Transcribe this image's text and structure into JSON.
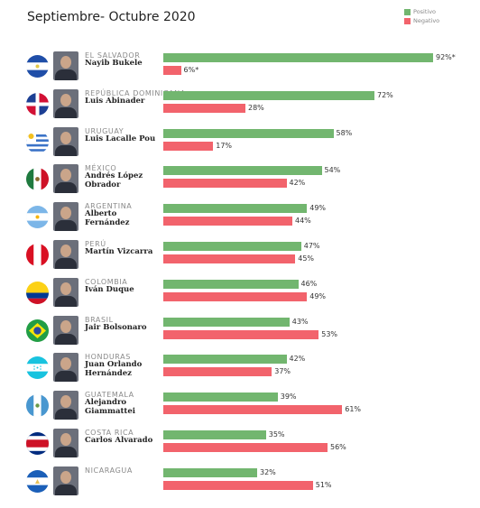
{
  "title": "Septiembre- Octubre 2020",
  "legend": {
    "positive": "Positivo",
    "negative": "Negativo"
  },
  "colors": {
    "positive": "#72b66f",
    "negative": "#f2636c"
  },
  "chart_data": {
    "type": "bar",
    "orientation": "horizontal",
    "title": "Septiembre- Octubre 2020",
    "xlim": [
      0,
      100
    ],
    "legend_position": "top-right",
    "series": [
      {
        "name": "Positivo",
        "values": [
          92,
          72,
          58,
          54,
          49,
          47,
          46,
          43,
          42,
          39,
          35,
          32
        ]
      },
      {
        "name": "Negativo",
        "values": [
          6,
          28,
          17,
          42,
          44,
          45,
          49,
          53,
          37,
          61,
          56,
          51
        ]
      }
    ],
    "rows": [
      {
        "country": "EL SALVADOR",
        "leader": "Nayib Bukele",
        "positive": 92,
        "negative": 6,
        "pos_label": "92%*",
        "neg_label": "6%*",
        "flag": "el-salvador-flag"
      },
      {
        "country": "REPÚBLICA DOMINICANA",
        "leader": "Luis Abinader",
        "positive": 72,
        "negative": 28,
        "pos_label": "72%",
        "neg_label": "28%",
        "flag": "dominican-republic-flag"
      },
      {
        "country": "URUGUAY",
        "leader": "Luis Lacalle Pou",
        "positive": 58,
        "negative": 17,
        "pos_label": "58%",
        "neg_label": "17%",
        "flag": "uruguay-flag"
      },
      {
        "country": "MÉXICO",
        "leader": "Andrés López Obrador",
        "positive": 54,
        "negative": 42,
        "pos_label": "54%",
        "neg_label": "42%",
        "flag": "mexico-flag"
      },
      {
        "country": "ARGENTINA",
        "leader": "Alberto Fernández",
        "positive": 49,
        "negative": 44,
        "pos_label": "49%",
        "neg_label": "44%",
        "flag": "argentina-flag"
      },
      {
        "country": "PERÚ",
        "leader": "Martín Vizcarra",
        "positive": 47,
        "negative": 45,
        "pos_label": "47%",
        "neg_label": "45%",
        "flag": "peru-flag"
      },
      {
        "country": "COLOMBIA",
        "leader": "Iván Duque",
        "positive": 46,
        "negative": 49,
        "pos_label": "46%",
        "neg_label": "49%",
        "flag": "colombia-flag"
      },
      {
        "country": "BRASIL",
        "leader": "Jair Bolsonaro",
        "positive": 43,
        "negative": 53,
        "pos_label": "43%",
        "neg_label": "53%",
        "flag": "brazil-flag"
      },
      {
        "country": "HONDURAS",
        "leader": "Juan Orlando Hernández",
        "positive": 42,
        "negative": 37,
        "pos_label": "42%",
        "neg_label": "37%",
        "flag": "honduras-flag"
      },
      {
        "country": "GUATEMALA",
        "leader": "Alejandro Giammattei",
        "positive": 39,
        "negative": 61,
        "pos_label": "39%",
        "neg_label": "61%",
        "flag": "guatemala-flag"
      },
      {
        "country": "COSTA RICA",
        "leader": "Carlos Alvarado",
        "positive": 35,
        "negative": 56,
        "pos_label": "35%",
        "neg_label": "56%",
        "flag": "costa-rica-flag"
      },
      {
        "country": "NICARAGUA",
        "leader": "",
        "positive": 32,
        "negative": 51,
        "pos_label": "32%",
        "neg_label": "51%",
        "flag": "nicaragua-flag"
      }
    ]
  }
}
